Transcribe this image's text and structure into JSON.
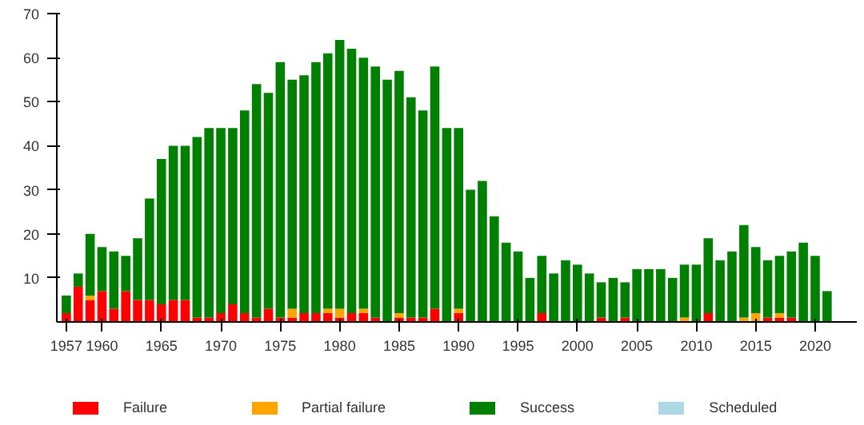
{
  "chart_data": {
    "type": "bar",
    "stacked": true,
    "x": [
      1957,
      1958,
      1959,
      1960,
      1961,
      1962,
      1963,
      1964,
      1965,
      1966,
      1967,
      1968,
      1969,
      1970,
      1971,
      1972,
      1973,
      1974,
      1975,
      1976,
      1977,
      1978,
      1979,
      1980,
      1981,
      1982,
      1983,
      1984,
      1985,
      1986,
      1987,
      1988,
      1989,
      1990,
      1991,
      1992,
      1993,
      1994,
      1995,
      1996,
      1997,
      1998,
      1999,
      2000,
      2001,
      2002,
      2003,
      2004,
      2005,
      2006,
      2007,
      2008,
      2009,
      2010,
      2011,
      2012,
      2013,
      2014,
      2015,
      2016,
      2017,
      2018,
      2019,
      2020,
      2021
    ],
    "series": [
      {
        "name": "Failure",
        "color": "#ff0000",
        "values": [
          2,
          8,
          5,
          7,
          3,
          7,
          5,
          5,
          4,
          5,
          5,
          1,
          1,
          2,
          4,
          2,
          1,
          3,
          1,
          1,
          2,
          2,
          2,
          1,
          2,
          2,
          1,
          0,
          1,
          1,
          1,
          3,
          0,
          2,
          0,
          0,
          0,
          0,
          0,
          0,
          2,
          0,
          0,
          0,
          0,
          1,
          0,
          1,
          0,
          0,
          0,
          0,
          0,
          0,
          2,
          0,
          0,
          0,
          0,
          1,
          1,
          1,
          0,
          0,
          0
        ]
      },
      {
        "name": "Partial failure",
        "color": "#ffa500",
        "values": [
          0,
          0,
          1,
          0,
          0,
          0,
          0,
          0,
          0,
          0,
          0,
          0,
          0,
          0,
          0,
          0,
          0,
          0,
          0,
          2,
          0,
          0,
          1,
          2,
          0,
          1,
          0,
          0,
          1,
          0,
          0,
          0,
          0,
          1,
          0,
          0,
          0,
          0,
          0,
          0,
          0,
          0,
          0,
          0,
          0,
          0,
          0,
          0,
          0,
          0,
          0,
          0,
          1,
          0,
          0,
          0,
          0,
          1,
          2,
          0,
          1,
          0,
          0,
          0,
          0
        ]
      },
      {
        "name": "Success",
        "color": "#008000",
        "values": [
          4,
          3,
          14,
          10,
          13,
          8,
          14,
          23,
          33,
          35,
          35,
          41,
          43,
          42,
          40,
          46,
          53,
          49,
          58,
          52,
          54,
          57,
          58,
          61,
          60,
          57,
          57,
          55,
          55,
          50,
          47,
          55,
          44,
          41,
          30,
          32,
          24,
          18,
          16,
          10,
          13,
          11,
          14,
          13,
          11,
          8,
          10,
          8,
          12,
          12,
          12,
          10,
          12,
          13,
          17,
          14,
          16,
          21,
          15,
          13,
          13,
          15,
          18,
          15,
          7
        ]
      },
      {
        "name": "Scheduled",
        "color": "#add8e6",
        "values": [
          0,
          0,
          0,
          0,
          0,
          0,
          0,
          0,
          0,
          0,
          0,
          0,
          0,
          0,
          0,
          0,
          0,
          0,
          0,
          0,
          0,
          0,
          0,
          0,
          0,
          0,
          0,
          0,
          0,
          0,
          0,
          0,
          0,
          0,
          0,
          0,
          0,
          0,
          0,
          0,
          0,
          0,
          0,
          0,
          0,
          0,
          0,
          0,
          0,
          0,
          0,
          0,
          0,
          0,
          0,
          0,
          0,
          0,
          0,
          0,
          0,
          0,
          0,
          0,
          0
        ]
      }
    ],
    "xlim": [
      1956.2,
      2023.5
    ],
    "xticks": [
      1957,
      1960,
      1965,
      1970,
      1975,
      1980,
      1985,
      1990,
      1995,
      2000,
      2005,
      2010,
      2015,
      2020
    ],
    "ylim": [
      0,
      70
    ],
    "yticks": [
      10,
      20,
      30,
      40,
      50,
      60,
      70
    ],
    "grid": false,
    "legend": "bottom"
  }
}
